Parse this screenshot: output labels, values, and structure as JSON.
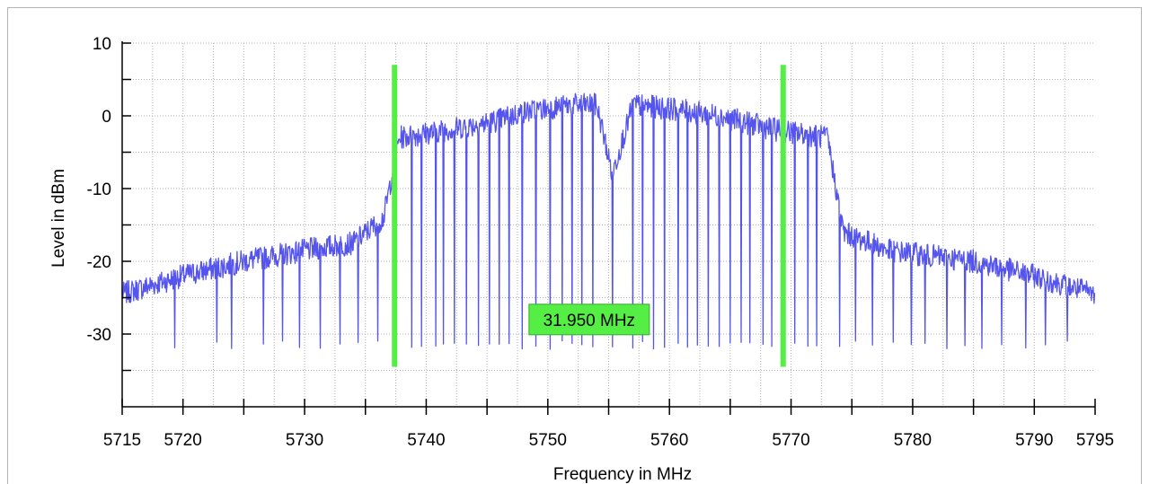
{
  "chart_data": {
    "type": "line",
    "title": "",
    "xlabel": "Frequency in MHz",
    "ylabel": "Level in dBm",
    "xlim": [
      5715,
      5795
    ],
    "ylim": [
      -40,
      10
    ],
    "x_ticks": [
      5715,
      5720,
      5730,
      5740,
      5750,
      5760,
      5770,
      5780,
      5790,
      5795
    ],
    "y_ticks": [
      10,
      0,
      -10,
      -20,
      -30
    ],
    "grid": true,
    "series_color": "#5555ee",
    "marker_color": "#55ee44",
    "markers": [
      {
        "x": 5737.4,
        "y_top": 7,
        "y_bottom": -34.5
      },
      {
        "x": 5769.35,
        "y_top": 7,
        "y_bottom": -34.5
      }
    ],
    "bandwidth_label": "31.950 MHz",
    "bandwidth_label_anchor": {
      "x": 5753.4,
      "y": -28
    },
    "envelope": [
      {
        "x": 5715,
        "y": -24.5
      },
      {
        "x": 5720,
        "y": -22
      },
      {
        "x": 5725,
        "y": -20
      },
      {
        "x": 5730,
        "y": -18.5
      },
      {
        "x": 5734,
        "y": -17.5
      },
      {
        "x": 5736.5,
        "y": -14
      },
      {
        "x": 5737.2,
        "y": -8
      },
      {
        "x": 5737.8,
        "y": -3
      },
      {
        "x": 5745,
        "y": -1
      },
      {
        "x": 5748,
        "y": 0.5
      },
      {
        "x": 5752,
        "y": 1.5
      },
      {
        "x": 5754,
        "y": 1.5
      },
      {
        "x": 5754.5,
        "y": -2
      },
      {
        "x": 5755.3,
        "y": -8
      },
      {
        "x": 5756.2,
        "y": -3
      },
      {
        "x": 5757,
        "y": 1.5
      },
      {
        "x": 5760,
        "y": 1
      },
      {
        "x": 5764,
        "y": 0
      },
      {
        "x": 5769,
        "y": -2
      },
      {
        "x": 5773,
        "y": -3
      },
      {
        "x": 5773.7,
        "y": -10
      },
      {
        "x": 5774.3,
        "y": -16
      },
      {
        "x": 5778,
        "y": -18.5
      },
      {
        "x": 5785,
        "y": -20
      },
      {
        "x": 5790,
        "y": -22
      },
      {
        "x": 5795,
        "y": -24.5
      }
    ],
    "dropouts": [
      5719.3,
      5722.8,
      5724.0,
      5726.6,
      5728.2,
      5729.6,
      5731.3,
      5732.9,
      5734.4,
      5736.0,
      5737.4,
      5738.8,
      5739.6,
      5740.8,
      5741.4,
      5742.3,
      5743.3,
      5744.3,
      5745.2,
      5746.0,
      5746.8,
      5747.9,
      5749.0,
      5750.2,
      5751.2,
      5752.0,
      5752.8,
      5753.7,
      5755.3,
      5757.0,
      5757.8,
      5758.7,
      5759.6,
      5760.7,
      5761.5,
      5762.3,
      5763.2,
      5764.1,
      5765.0,
      5765.9,
      5766.6,
      5767.7,
      5768.4,
      5769.3,
      5770.3,
      5771.4,
      5772.1,
      5774.0,
      5775.3,
      5776.7,
      5778.4,
      5779.9,
      5781.0,
      5782.8,
      5784.3,
      5785.7,
      5787.3,
      5789.3,
      5790.9,
      5792.7
    ],
    "dropout_level": -31.5
  }
}
